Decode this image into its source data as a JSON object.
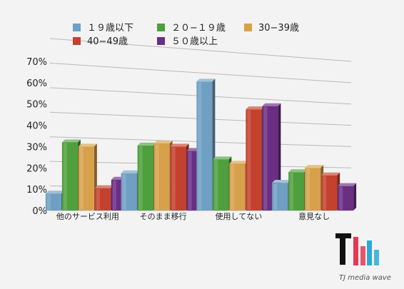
{
  "chart_data": {
    "type": "bar",
    "title": "",
    "xlabel": "",
    "ylabel": "",
    "ylim": [
      0,
      70
    ],
    "y_ticks": [
      "0%",
      "10%",
      "20%",
      "30%",
      "40%",
      "50%",
      "60%",
      "70%"
    ],
    "grid": true,
    "legend_position": "top",
    "categories": [
      "他のサービス利用",
      "そのまま移行",
      "使用してない",
      "意見なし"
    ],
    "series": [
      {
        "name": "１９歳以下",
        "color": "#6f9fc2",
        "values": [
          8,
          17.5,
          60.5,
          13
        ]
      },
      {
        "name": "２０−１９歳",
        "color": "#4f9f3d",
        "values": [
          32,
          30.5,
          24,
          18
        ]
      },
      {
        "name": "30−39歳",
        "color": "#d7a04a",
        "values": [
          30,
          31.5,
          22,
          20
        ]
      },
      {
        "name": "40−49歳",
        "color": "#c4412d",
        "values": [
          10.5,
          30,
          47.5,
          16.5
        ]
      },
      {
        "name": "５０歳以上",
        "color": "#6a2e83",
        "values": [
          14.5,
          28,
          49,
          11.5
        ]
      }
    ]
  },
  "logo": {
    "text": "TJ media wave"
  }
}
